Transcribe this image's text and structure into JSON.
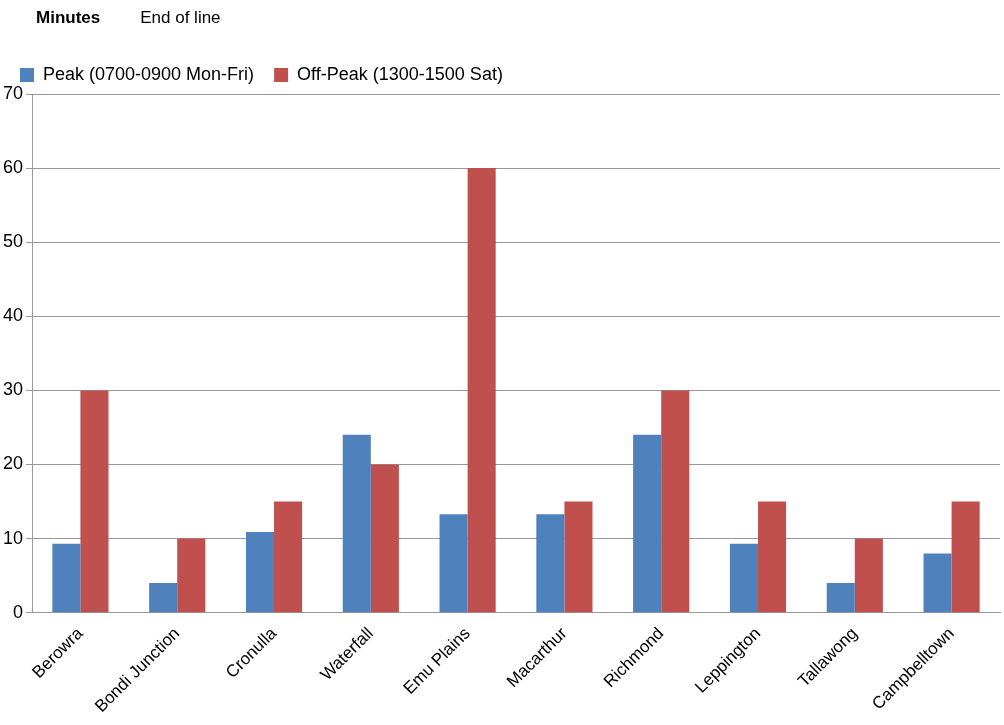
{
  "chart_data": {
    "type": "bar",
    "ylabel": "Minutes",
    "xlabel": "End of line",
    "categories": [
      "Berowra",
      "Bondi Junction",
      "Cronulla",
      "Waterfall",
      "Emu Plains",
      "Macarthur",
      "Richmond",
      "Leppington",
      "Tallawong",
      "Campbelltown"
    ],
    "series": [
      {
        "name": "Peak (0700-0900 Mon-Fri)",
        "color": "#4f81bd",
        "values": [
          9.3,
          4,
          10.9,
          24,
          13.3,
          13.3,
          24,
          9.3,
          4,
          8
        ]
      },
      {
        "name": "Off-Peak (1300-1500 Sat)",
        "color": "#c0504d",
        "values": [
          30,
          10,
          15,
          20,
          60,
          15,
          30,
          15,
          10,
          15
        ]
      }
    ],
    "ylim": [
      0,
      70
    ],
    "yticks": [
      0,
      10,
      20,
      30,
      40,
      50,
      60,
      70
    ],
    "grid": "y",
    "legend": "top left"
  }
}
